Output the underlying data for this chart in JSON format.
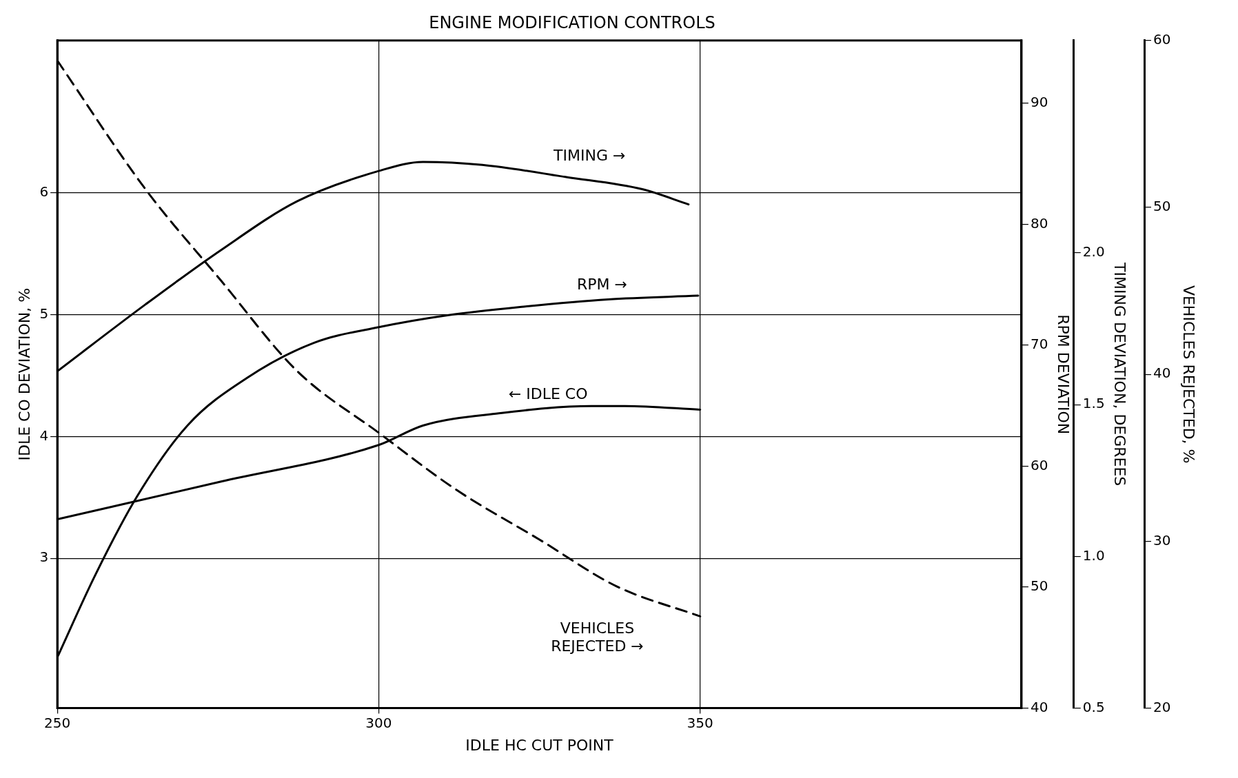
{
  "chart_data": [
    {
      "type": "line",
      "title": "ENGINE MODIFICATION CONTROLS",
      "xlabel": "IDLE HC CUT POINT",
      "ylabel": "IDLE CO DEVIATION, %",
      "y2label": "RPM DEVIATION",
      "y3label": "TIMING DEVIATION, DEGREES",
      "xlim": [
        250,
        400
      ],
      "xticks": [
        250,
        300,
        350
      ],
      "ylim": [
        1.77,
        7.25
      ],
      "yticks": [
        3,
        4,
        5,
        6
      ],
      "y2lim": [
        40,
        95.2
      ],
      "y2ticks": [
        40,
        50,
        60,
        70,
        80,
        90
      ],
      "y3lim": [
        0.5,
        2.7
      ],
      "y3ticks": [
        {
          "value": 0.5,
          "label": "0.5"
        },
        {
          "value": 1,
          "label": "1.0"
        },
        {
          "value": 1.5,
          "label": "1.5"
        },
        {
          "value": 2,
          "label": "2.0"
        }
      ],
      "grid": true,
      "legend": false,
      "marker": "none",
      "line_style": "solid",
      "series": [
        {
          "color": "#000000",
          "axis": "y3",
          "x": [
            250,
            263.7,
            275.5,
            287.3,
            300,
            306.9,
            316.1,
            329.2,
            341,
            348.2
          ],
          "values": [
            1.61,
            1.83,
            2.01,
            2.17,
            2.27,
            2.3,
            2.29,
            2.25,
            2.21,
            2.16
          ]
        },
        {
          "color": "#000000",
          "axis": "y2",
          "x": [
            250,
            255.9,
            262.4,
            270.3,
            279.5,
            289.9,
            300,
            310.9,
            322.6,
            335.7,
            349.7
          ],
          "values": [
            44.2,
            51,
            57.5,
            63.4,
            67.3,
            70.2,
            71.5,
            72.5,
            73.2,
            73.8,
            74.1
          ]
        },
        {
          "color": "#000000",
          "x": [
            250,
            275.5,
            300,
            306.9,
            318.7,
            333.1,
            338.3,
            350
          ],
          "values": [
            3.32,
            3.63,
            3.93,
            4.09,
            4.19,
            4.25,
            4.25,
            4.22
          ]
        }
      ],
      "annotations": [
        "TIMING →",
        "RPM →",
        "← IDLE CO"
      ]
    },
    {
      "type": "line",
      "ylabel": "VEHICLES REJECTED, %",
      "xlim": [
        250,
        400
      ],
      "ylim": [
        20,
        60
      ],
      "yticks": [
        20,
        30,
        40,
        50,
        60
      ],
      "tick_labels": "y",
      "legend": false,
      "marker": "none",
      "line_style": "dashed",
      "series": [
        {
          "color": "#000000",
          "x": [
            250,
            263.7,
            275.5,
            287.3,
            300,
            312,
            325,
            337,
            350
          ],
          "values": [
            58.8,
            51.1,
            45.6,
            40.2,
            36.5,
            33.1,
            30.1,
            27.3,
            25.5
          ]
        }
      ],
      "annotations": [
        "VEHICLES\nREJECTED →"
      ]
    }
  ]
}
